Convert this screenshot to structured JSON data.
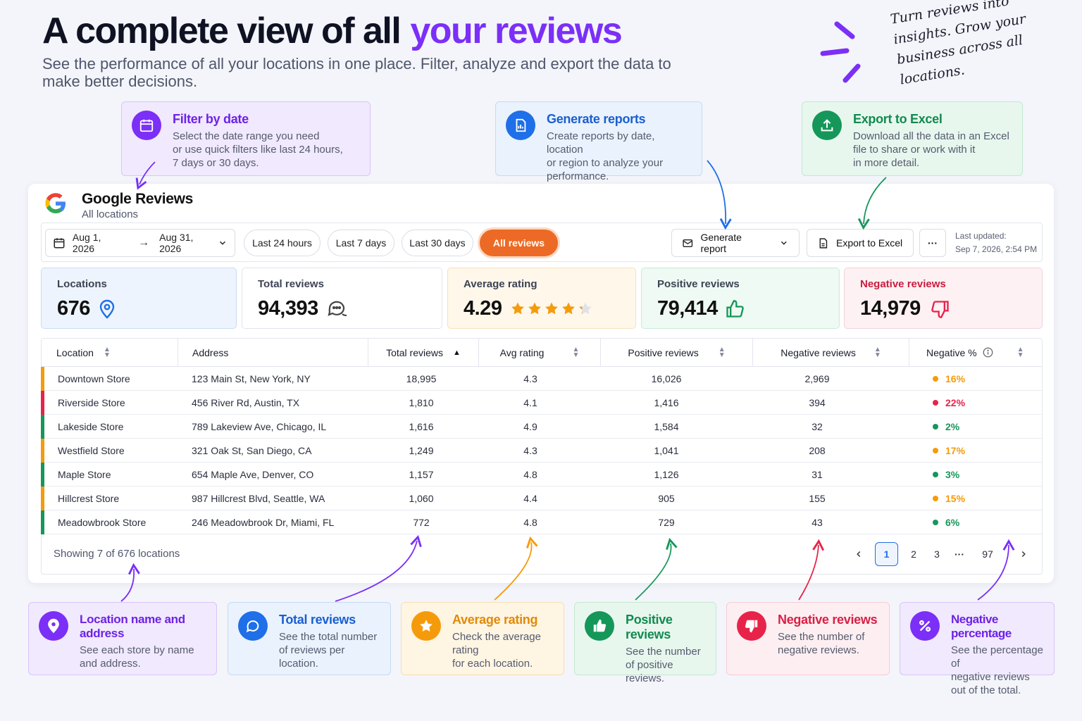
{
  "hero": {
    "title_main": "A complete view of all",
    "title_accent": "your reviews",
    "subtitle": "See the performance of all your locations in one place. Filter, analyze and export the data to make better decisions.",
    "note": "Turn reviews into insights. Grow your business across all locations."
  },
  "top_callouts": [
    {
      "title": "Filter by date",
      "text": "Select the date range you need\nor use quick filters like last 24 hours,\n7 days or 30 days.",
      "icon": "calendar-icon"
    },
    {
      "title": "Generate reports",
      "text": "Create reports by date, location\nor region to analyze your\nperformance.",
      "icon": "report-icon"
    },
    {
      "title": "Export to Excel",
      "text": "Download all the data in an Excel\nfile to share or work with it\nin more detail.",
      "icon": "upload-icon"
    }
  ],
  "dashboard": {
    "title": "Google Reviews",
    "subtitle": "All locations",
    "date_from": "Aug 1, 2026",
    "date_to": "Aug 31, 2026",
    "chips": [
      "Last 24 hours",
      "Last 7 days",
      "Last 30 days",
      "All reviews"
    ],
    "generate_label": "Generate report",
    "export_label": "Export to Excel",
    "more_label": "···",
    "last_updated_label": "Last updated:",
    "last_updated_value": "Sep 7, 2026, 2:54 PM"
  },
  "kpis": [
    {
      "label": "Locations",
      "value": "676",
      "icon": "location-pin-icon"
    },
    {
      "label": "Total reviews",
      "value": "94,393",
      "icon": "chat-bubbles-icon"
    },
    {
      "label": "Average rating",
      "value": "4.29",
      "icon": "stars-icon",
      "stars": 4.29
    },
    {
      "label": "Positive reviews",
      "value": "79,414",
      "icon": "thumbs-up-icon"
    },
    {
      "label": "Negative reviews",
      "value": "14,979",
      "icon": "thumbs-down-icon"
    }
  ],
  "table": {
    "headers": [
      "Location",
      "Address",
      "Total reviews",
      "Avg rating",
      "Positive reviews",
      "Negative reviews",
      "Negative %"
    ],
    "rows": [
      {
        "location": "Downtown Store",
        "address": "123 Main St, New York, NY",
        "total": "18,995",
        "avg": "4.3",
        "pos": "16,026",
        "neg": "2,969",
        "pct": "16%",
        "level": "orange"
      },
      {
        "location": "Riverside Store",
        "address": "456 River Rd, Austin, TX",
        "total": "1,810",
        "avg": "4.1",
        "pos": "1,416",
        "neg": "394",
        "pct": "22%",
        "level": "red"
      },
      {
        "location": "Lakeside Store",
        "address": "789 Lakeview Ave, Chicago, IL",
        "total": "1,616",
        "avg": "4.9",
        "pos": "1,584",
        "neg": "32",
        "pct": "2%",
        "level": "green"
      },
      {
        "location": "Westfield Store",
        "address": "321 Oak St, San Diego, CA",
        "total": "1,249",
        "avg": "4.3",
        "pos": "1,041",
        "neg": "208",
        "pct": "17%",
        "level": "orange"
      },
      {
        "location": "Maple Store",
        "address": "654 Maple Ave, Denver, CO",
        "total": "1,157",
        "avg": "4.8",
        "pos": "1,126",
        "neg": "31",
        "pct": "3%",
        "level": "green"
      },
      {
        "location": "Hillcrest Store",
        "address": "987 Hillcrest Blvd, Seattle, WA",
        "total": "1,060",
        "avg": "4.4",
        "pos": "905",
        "neg": "155",
        "pct": "15%",
        "level": "orange"
      },
      {
        "location": "Meadowbrook Store",
        "address": "246 Meadowbrook Dr, Miami, FL",
        "total": "772",
        "avg": "4.8",
        "pos": "729",
        "neg": "43",
        "pct": "6%",
        "level": "green"
      }
    ],
    "showing": "Showing 7 of 676 locations",
    "pages": [
      "1",
      "2",
      "3",
      "···",
      "97"
    ]
  },
  "colors": {
    "red": "#e8234a",
    "orange": "#f59b0b",
    "green": "#15975a",
    "accent": "#7b2ff7"
  },
  "bottom_callouts": [
    {
      "title": "Location name and address",
      "text": "See each store by name\nand address.",
      "icon": "location-pin-icon"
    },
    {
      "title": "Total reviews",
      "text": "See the total number\nof reviews per location.",
      "icon": "chat-icon"
    },
    {
      "title": "Average rating",
      "text": "Check the average rating\nfor each location.",
      "icon": "star-icon"
    },
    {
      "title": "Positive reviews",
      "text": "See the number\nof positive reviews.",
      "icon": "thumbs-up-icon"
    },
    {
      "title": "Negative reviews",
      "text": "See the number of\nnegative reviews.",
      "icon": "thumbs-down-icon"
    },
    {
      "title": "Negative percentage",
      "text": "See the percentage of\nnegative reviews\nout of the total.",
      "icon": "percent-icon"
    }
  ]
}
